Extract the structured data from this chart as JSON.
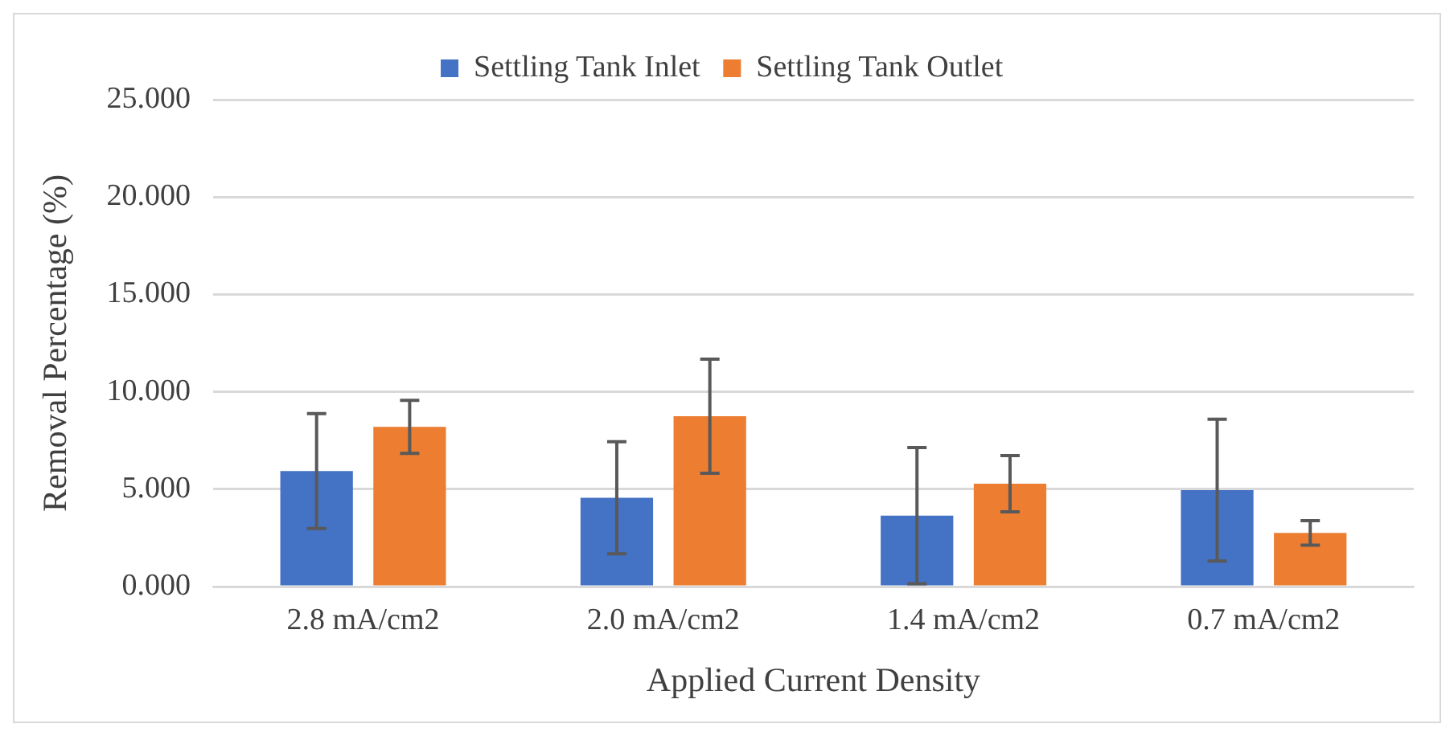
{
  "chart_data": {
    "type": "bar",
    "xlabel": "Applied Current Density",
    "ylabel": "Removal Percentage (%)",
    "categories": [
      "2.8 mA/cm2",
      "2.0 mA/cm2",
      "1.4 mA/cm2",
      "0.7 mA/cm2"
    ],
    "series": [
      {
        "name": "Settling Tank Inlet",
        "color": "#4472c4",
        "values": [
          5.93,
          4.56,
          3.64,
          4.95
        ],
        "errors": [
          2.95,
          2.88,
          3.5,
          3.64
        ]
      },
      {
        "name": "Settling Tank Outlet",
        "color": "#ed7d31",
        "values": [
          8.2,
          8.75,
          5.28,
          2.75
        ],
        "errors": [
          1.36,
          2.93,
          1.44,
          0.63
        ]
      }
    ],
    "ylim": [
      0,
      25
    ],
    "yticks": [
      {
        "value": 0,
        "label": "0.000"
      },
      {
        "value": 5,
        "label": "5.000"
      },
      {
        "value": 10,
        "label": "10.000"
      },
      {
        "value": 15,
        "label": "15.000"
      },
      {
        "value": 20,
        "label": "20.000"
      },
      {
        "value": 25,
        "label": "25.000"
      }
    ],
    "grid": "y",
    "legend": "top"
  }
}
